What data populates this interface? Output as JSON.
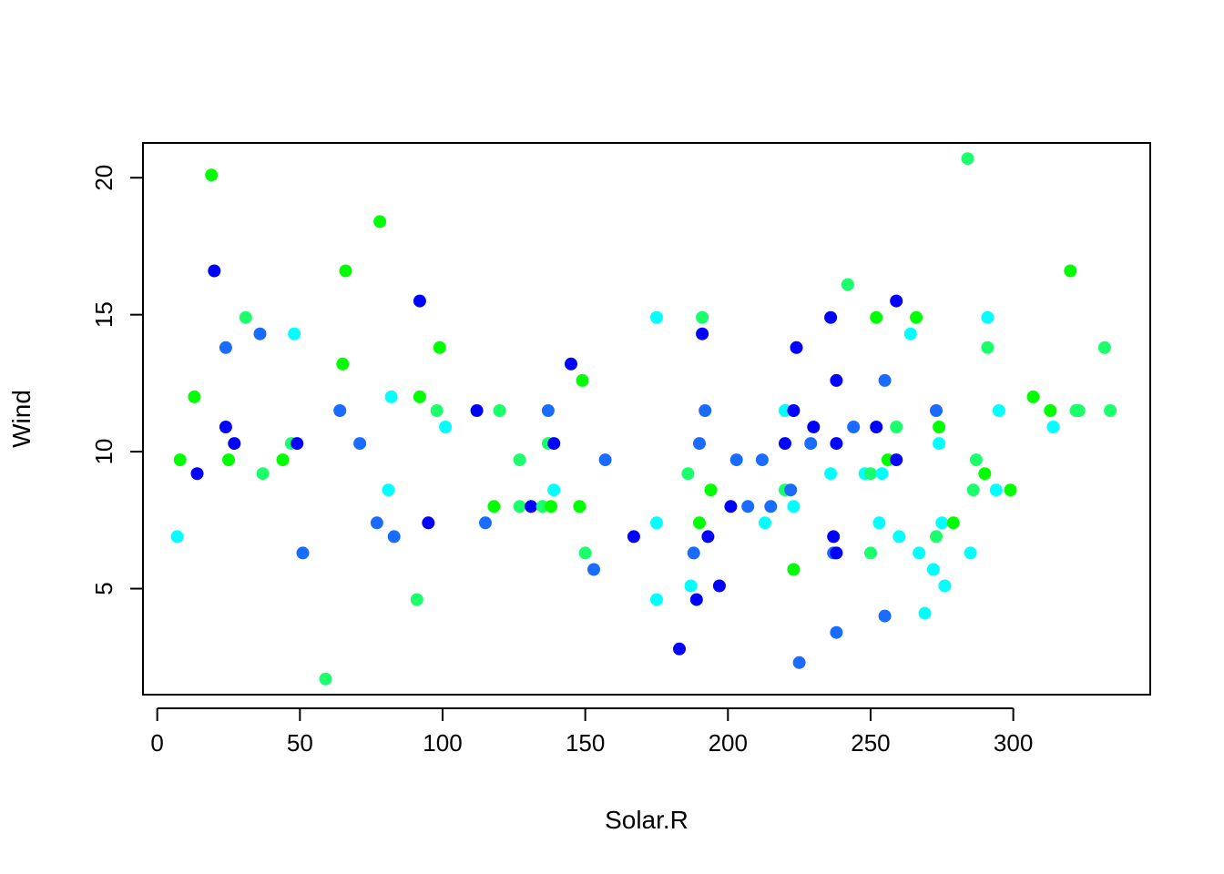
{
  "chart_data": {
    "type": "scatter",
    "title": "",
    "xlabel": "Solar.R",
    "ylabel": "Wind",
    "xlim": [
      -5,
      348
    ],
    "ylim": [
      1.13,
      21.27
    ],
    "xticks": [
      0,
      50,
      100,
      150,
      200,
      250,
      300
    ],
    "yticks": [
      5,
      10,
      15,
      20
    ],
    "grid": false,
    "legend": "none",
    "point_colors": {
      "blue": "#0000FF",
      "dodger": "#1A6BFF",
      "cyan": "#00FFFF",
      "spring": "#1AFF6B",
      "green": "#00FF00"
    },
    "points": [
      {
        "x": 7,
        "y": 6.9,
        "c": "cyan"
      },
      {
        "x": 8,
        "y": 9.7,
        "c": "green"
      },
      {
        "x": 13,
        "y": 12.0,
        "c": "green"
      },
      {
        "x": 14,
        "y": 9.2,
        "c": "blue"
      },
      {
        "x": 19,
        "y": 20.1,
        "c": "green"
      },
      {
        "x": 20,
        "y": 16.6,
        "c": "blue"
      },
      {
        "x": 24,
        "y": 13.8,
        "c": "dodger"
      },
      {
        "x": 24,
        "y": 10.9,
        "c": "blue"
      },
      {
        "x": 25,
        "y": 9.7,
        "c": "green"
      },
      {
        "x": 27,
        "y": 10.3,
        "c": "blue"
      },
      {
        "x": 31,
        "y": 14.9,
        "c": "spring"
      },
      {
        "x": 36,
        "y": 14.3,
        "c": "dodger"
      },
      {
        "x": 37,
        "y": 9.2,
        "c": "spring"
      },
      {
        "x": 44,
        "y": 9.7,
        "c": "green"
      },
      {
        "x": 47,
        "y": 10.3,
        "c": "spring"
      },
      {
        "x": 48,
        "y": 14.3,
        "c": "cyan"
      },
      {
        "x": 49,
        "y": 10.3,
        "c": "blue"
      },
      {
        "x": 51,
        "y": 6.3,
        "c": "dodger"
      },
      {
        "x": 59,
        "y": 1.7,
        "c": "spring"
      },
      {
        "x": 64,
        "y": 11.5,
        "c": "dodger"
      },
      {
        "x": 65,
        "y": 13.2,
        "c": "green"
      },
      {
        "x": 66,
        "y": 16.6,
        "c": "green"
      },
      {
        "x": 71,
        "y": 10.3,
        "c": "dodger"
      },
      {
        "x": 77,
        "y": 7.4,
        "c": "dodger"
      },
      {
        "x": 78,
        "y": 18.4,
        "c": "green"
      },
      {
        "x": 81,
        "y": 8.6,
        "c": "cyan"
      },
      {
        "x": 82,
        "y": 12.0,
        "c": "cyan"
      },
      {
        "x": 83,
        "y": 6.9,
        "c": "dodger"
      },
      {
        "x": 91,
        "y": 4.6,
        "c": "spring"
      },
      {
        "x": 92,
        "y": 15.5,
        "c": "blue"
      },
      {
        "x": 92,
        "y": 12.0,
        "c": "green"
      },
      {
        "x": 95,
        "y": 7.4,
        "c": "blue"
      },
      {
        "x": 98,
        "y": 11.5,
        "c": "spring"
      },
      {
        "x": 99,
        "y": 13.8,
        "c": "green"
      },
      {
        "x": 101,
        "y": 10.9,
        "c": "cyan"
      },
      {
        "x": 112,
        "y": 11.5,
        "c": "blue"
      },
      {
        "x": 115,
        "y": 7.4,
        "c": "dodger"
      },
      {
        "x": 118,
        "y": 8.0,
        "c": "green"
      },
      {
        "x": 120,
        "y": 11.5,
        "c": "spring"
      },
      {
        "x": 127,
        "y": 9.7,
        "c": "spring"
      },
      {
        "x": 127,
        "y": 8.0,
        "c": "spring"
      },
      {
        "x": 131,
        "y": 8.0,
        "c": "blue"
      },
      {
        "x": 135,
        "y": 8.0,
        "c": "spring"
      },
      {
        "x": 137,
        "y": 11.5,
        "c": "dodger"
      },
      {
        "x": 137,
        "y": 10.3,
        "c": "spring"
      },
      {
        "x": 138,
        "y": 8.0,
        "c": "green"
      },
      {
        "x": 139,
        "y": 10.3,
        "c": "blue"
      },
      {
        "x": 139,
        "y": 8.6,
        "c": "cyan"
      },
      {
        "x": 145,
        "y": 13.2,
        "c": "blue"
      },
      {
        "x": 148,
        "y": 8.0,
        "c": "green"
      },
      {
        "x": 149,
        "y": 12.6,
        "c": "green"
      },
      {
        "x": 150,
        "y": 6.3,
        "c": "spring"
      },
      {
        "x": 153,
        "y": 5.7,
        "c": "dodger"
      },
      {
        "x": 157,
        "y": 9.7,
        "c": "dodger"
      },
      {
        "x": 167,
        "y": 6.9,
        "c": "blue"
      },
      {
        "x": 175,
        "y": 14.9,
        "c": "cyan"
      },
      {
        "x": 175,
        "y": 7.4,
        "c": "cyan"
      },
      {
        "x": 175,
        "y": 4.6,
        "c": "cyan"
      },
      {
        "x": 183,
        "y": 2.8,
        "c": "blue"
      },
      {
        "x": 186,
        "y": 9.2,
        "c": "spring"
      },
      {
        "x": 187,
        "y": 5.1,
        "c": "cyan"
      },
      {
        "x": 188,
        "y": 6.3,
        "c": "dodger"
      },
      {
        "x": 189,
        "y": 4.6,
        "c": "blue"
      },
      {
        "x": 190,
        "y": 10.3,
        "c": "dodger"
      },
      {
        "x": 190,
        "y": 7.4,
        "c": "green"
      },
      {
        "x": 191,
        "y": 14.9,
        "c": "spring"
      },
      {
        "x": 191,
        "y": 14.3,
        "c": "blue"
      },
      {
        "x": 192,
        "y": 11.5,
        "c": "dodger"
      },
      {
        "x": 193,
        "y": 6.9,
        "c": "blue"
      },
      {
        "x": 194,
        "y": 8.6,
        "c": "green"
      },
      {
        "x": 197,
        "y": 5.1,
        "c": "blue"
      },
      {
        "x": 201,
        "y": 8.0,
        "c": "blue"
      },
      {
        "x": 203,
        "y": 9.7,
        "c": "dodger"
      },
      {
        "x": 207,
        "y": 8.0,
        "c": "dodger"
      },
      {
        "x": 212,
        "y": 9.7,
        "c": "dodger"
      },
      {
        "x": 213,
        "y": 7.4,
        "c": "cyan"
      },
      {
        "x": 215,
        "y": 8.0,
        "c": "dodger"
      },
      {
        "x": 220,
        "y": 11.5,
        "c": "cyan"
      },
      {
        "x": 220,
        "y": 10.3,
        "c": "blue"
      },
      {
        "x": 220,
        "y": 8.6,
        "c": "spring"
      },
      {
        "x": 222,
        "y": 8.6,
        "c": "dodger"
      },
      {
        "x": 223,
        "y": 11.5,
        "c": "blue"
      },
      {
        "x": 223,
        "y": 8.0,
        "c": "cyan"
      },
      {
        "x": 223,
        "y": 5.7,
        "c": "green"
      },
      {
        "x": 224,
        "y": 13.8,
        "c": "blue"
      },
      {
        "x": 225,
        "y": 2.3,
        "c": "dodger"
      },
      {
        "x": 229,
        "y": 10.3,
        "c": "dodger"
      },
      {
        "x": 230,
        "y": 10.9,
        "c": "blue"
      },
      {
        "x": 236,
        "y": 14.9,
        "c": "blue"
      },
      {
        "x": 236,
        "y": 9.2,
        "c": "cyan"
      },
      {
        "x": 237,
        "y": 6.9,
        "c": "blue"
      },
      {
        "x": 237,
        "y": 6.3,
        "c": "dodger"
      },
      {
        "x": 238,
        "y": 12.6,
        "c": "blue"
      },
      {
        "x": 238,
        "y": 10.3,
        "c": "blue"
      },
      {
        "x": 238,
        "y": 6.3,
        "c": "blue"
      },
      {
        "x": 238,
        "y": 3.4,
        "c": "dodger"
      },
      {
        "x": 242,
        "y": 16.1,
        "c": "spring"
      },
      {
        "x": 244,
        "y": 10.9,
        "c": "dodger"
      },
      {
        "x": 248,
        "y": 9.2,
        "c": "cyan"
      },
      {
        "x": 250,
        "y": 9.2,
        "c": "spring"
      },
      {
        "x": 250,
        "y": 6.3,
        "c": "spring"
      },
      {
        "x": 252,
        "y": 14.9,
        "c": "green"
      },
      {
        "x": 252,
        "y": 10.9,
        "c": "blue"
      },
      {
        "x": 253,
        "y": 7.4,
        "c": "cyan"
      },
      {
        "x": 254,
        "y": 9.2,
        "c": "cyan"
      },
      {
        "x": 255,
        "y": 12.6,
        "c": "dodger"
      },
      {
        "x": 255,
        "y": 4.0,
        "c": "dodger"
      },
      {
        "x": 256,
        "y": 9.7,
        "c": "green"
      },
      {
        "x": 259,
        "y": 15.5,
        "c": "blue"
      },
      {
        "x": 259,
        "y": 10.9,
        "c": "spring"
      },
      {
        "x": 259,
        "y": 9.7,
        "c": "blue"
      },
      {
        "x": 260,
        "y": 6.9,
        "c": "cyan"
      },
      {
        "x": 264,
        "y": 14.3,
        "c": "cyan"
      },
      {
        "x": 266,
        "y": 14.9,
        "c": "green"
      },
      {
        "x": 267,
        "y": 6.3,
        "c": "cyan"
      },
      {
        "x": 269,
        "y": 4.1,
        "c": "cyan"
      },
      {
        "x": 272,
        "y": 5.7,
        "c": "cyan"
      },
      {
        "x": 273,
        "y": 11.5,
        "c": "dodger"
      },
      {
        "x": 273,
        "y": 6.9,
        "c": "spring"
      },
      {
        "x": 274,
        "y": 10.9,
        "c": "green"
      },
      {
        "x": 274,
        "y": 10.3,
        "c": "cyan"
      },
      {
        "x": 275,
        "y": 7.4,
        "c": "cyan"
      },
      {
        "x": 276,
        "y": 5.1,
        "c": "cyan"
      },
      {
        "x": 279,
        "y": 7.4,
        "c": "green"
      },
      {
        "x": 284,
        "y": 20.7,
        "c": "spring"
      },
      {
        "x": 285,
        "y": 6.3,
        "c": "cyan"
      },
      {
        "x": 286,
        "y": 8.6,
        "c": "spring"
      },
      {
        "x": 287,
        "y": 9.7,
        "c": "spring"
      },
      {
        "x": 290,
        "y": 9.2,
        "c": "green"
      },
      {
        "x": 291,
        "y": 14.9,
        "c": "cyan"
      },
      {
        "x": 291,
        "y": 13.8,
        "c": "spring"
      },
      {
        "x": 294,
        "y": 8.6,
        "c": "cyan"
      },
      {
        "x": 295,
        "y": 11.5,
        "c": "cyan"
      },
      {
        "x": 299,
        "y": 8.6,
        "c": "green"
      },
      {
        "x": 307,
        "y": 12.0,
        "c": "green"
      },
      {
        "x": 313,
        "y": 11.5,
        "c": "green"
      },
      {
        "x": 314,
        "y": 10.9,
        "c": "cyan"
      },
      {
        "x": 320,
        "y": 16.6,
        "c": "green"
      },
      {
        "x": 322,
        "y": 11.5,
        "c": "spring"
      },
      {
        "x": 323,
        "y": 11.5,
        "c": "spring"
      },
      {
        "x": 332,
        "y": 13.8,
        "c": "spring"
      },
      {
        "x": 334,
        "y": 11.5,
        "c": "spring"
      }
    ]
  }
}
